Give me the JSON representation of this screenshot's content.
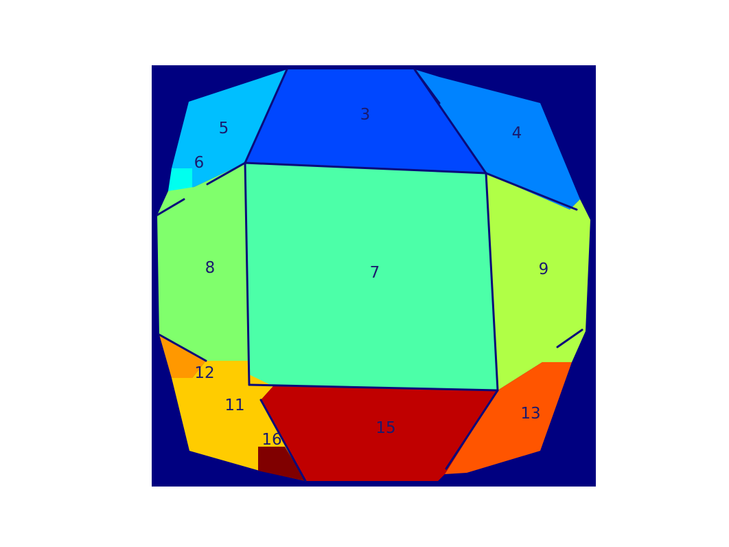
{
  "colors": {
    "background": "#000080",
    "edge": "#0a0a7a",
    "label": "#1a1a6e"
  },
  "regions": [
    {
      "id": "r3",
      "label": "3",
      "color": "#0047ff"
    },
    {
      "id": "r4",
      "label": "4",
      "color": "#0083ff"
    },
    {
      "id": "r5",
      "label": "5",
      "color": "#00bfff"
    },
    {
      "id": "r6",
      "label": "6",
      "color": "#00ffef"
    },
    {
      "id": "r7",
      "label": "7",
      "color": "#4cffa8"
    },
    {
      "id": "r8",
      "label": "8",
      "color": "#80ff6c"
    },
    {
      "id": "r9",
      "label": "9",
      "color": "#b0ff46"
    },
    {
      "id": "r11",
      "label": "11",
      "color": "#ffcc00"
    },
    {
      "id": "r12",
      "label": "12",
      "color": "#ff9800"
    },
    {
      "id": "r13",
      "label": "13",
      "color": "#ff5500"
    },
    {
      "id": "r15",
      "label": "15",
      "color": "#c00000"
    },
    {
      "id": "r16",
      "label": "16",
      "color": "#800000"
    }
  ]
}
